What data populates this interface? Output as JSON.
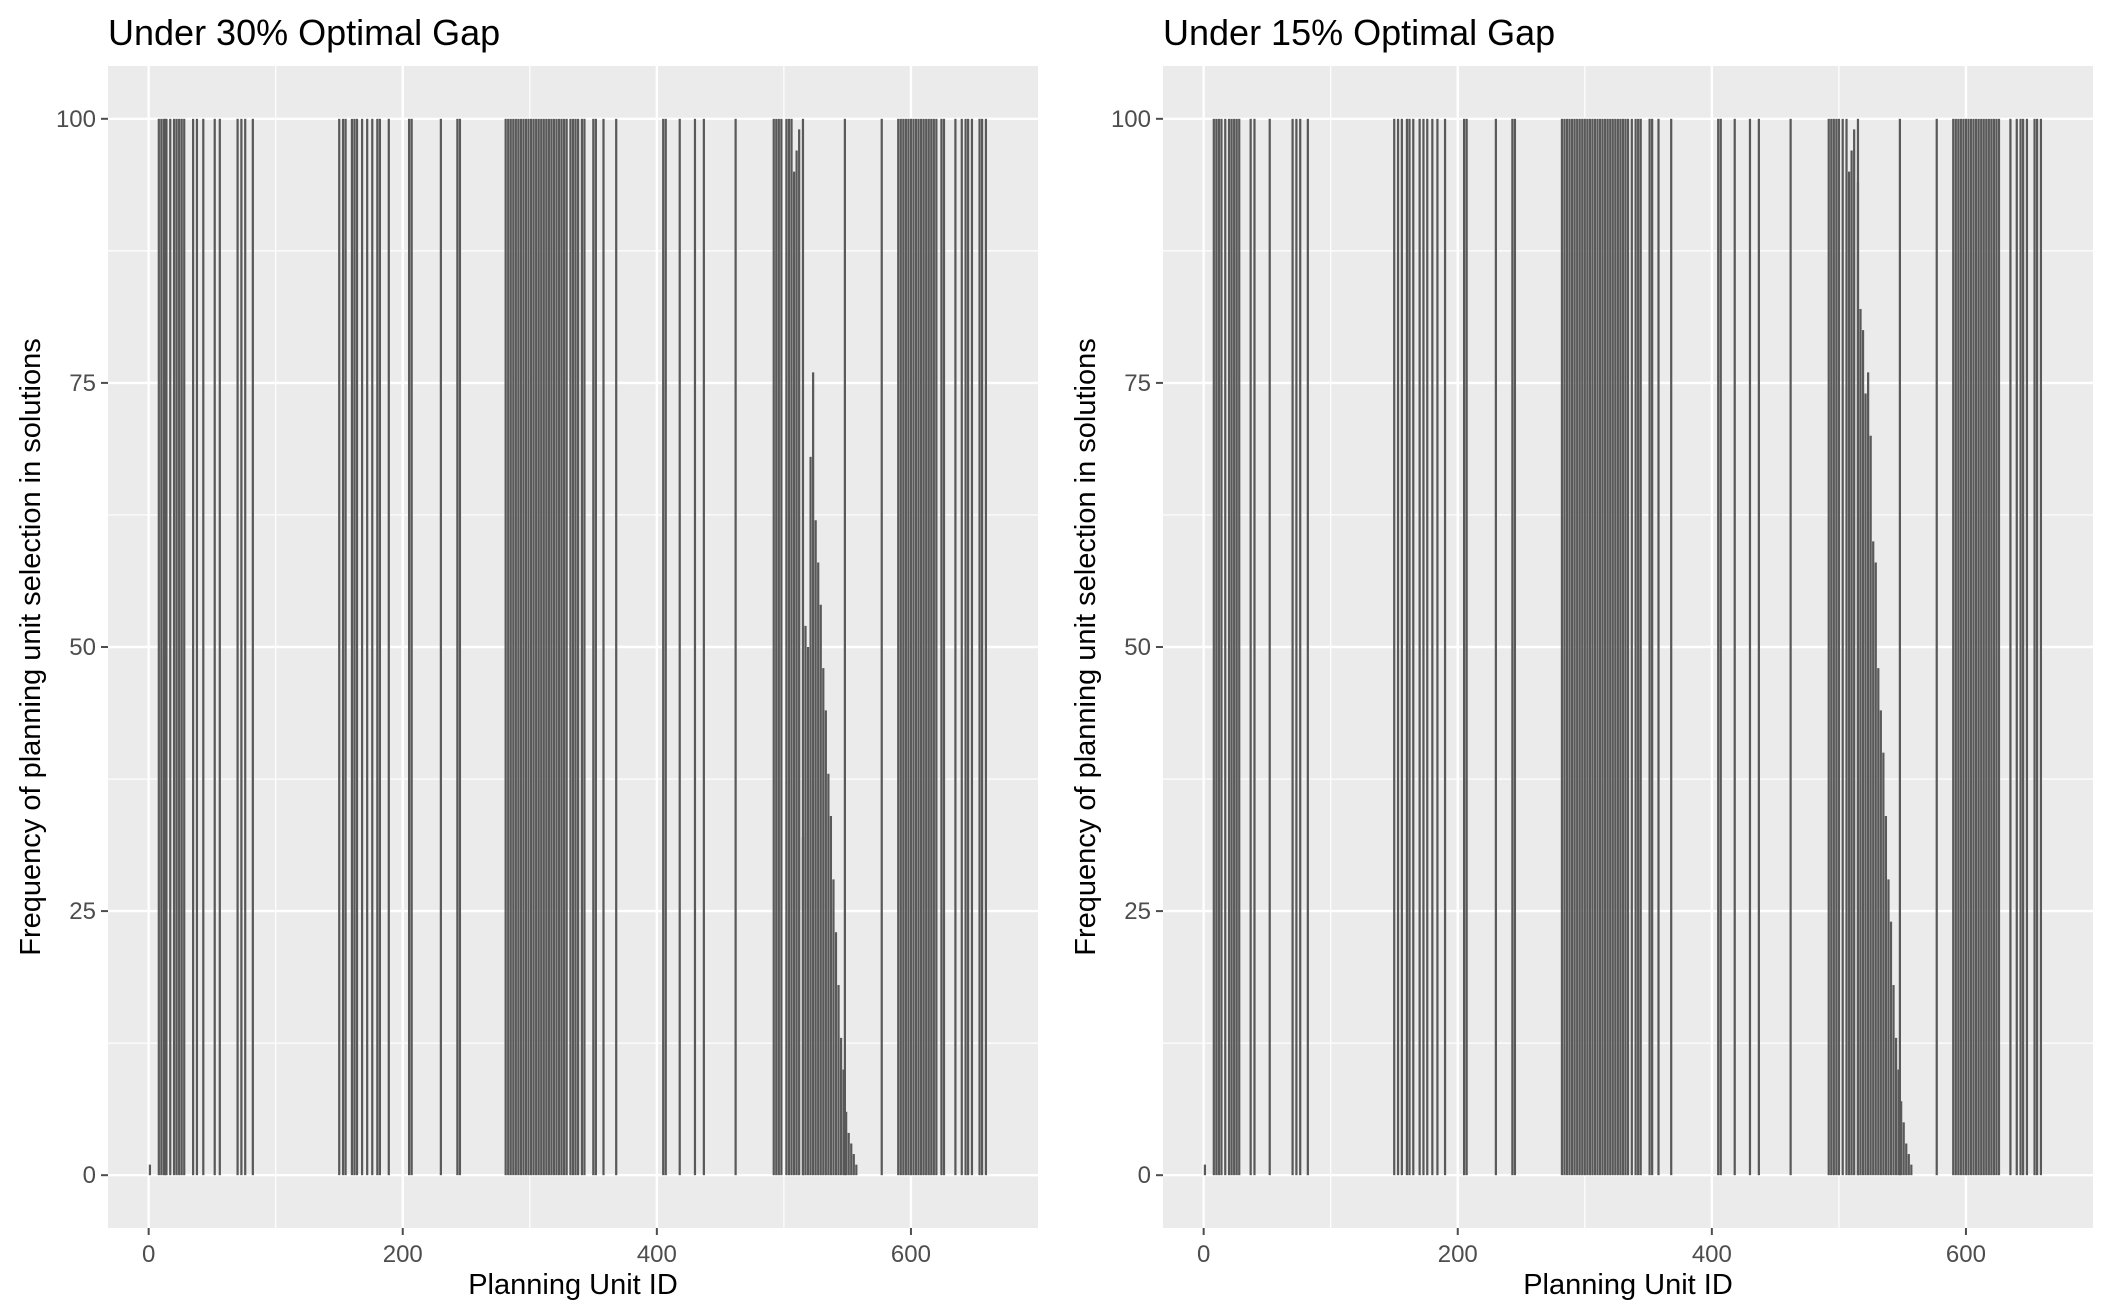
{
  "figure": {
    "colors": {
      "panel_bg": "#ebebeb",
      "grid": "#ffffff",
      "bar": "#595959",
      "tick": "#4d4d4d"
    }
  },
  "chart_data": [
    {
      "type": "bar",
      "title": "Under 30% Optimal Gap",
      "xlabel": "Planning Unit ID",
      "ylabel": "Frequency of planning unit selection in solutions",
      "xlim": [
        -32,
        700
      ],
      "ylim": [
        -5,
        105
      ],
      "x_ticks": [
        0,
        200,
        400,
        600
      ],
      "y_ticks": [
        0,
        25,
        50,
        75,
        100
      ],
      "grid": true,
      "full_bars": [
        8,
        10,
        12,
        13,
        14,
        17,
        20,
        22,
        24,
        26,
        28,
        35,
        38,
        43,
        52,
        56,
        70,
        73,
        76,
        82,
        150,
        153,
        155,
        160,
        162,
        164,
        168,
        172,
        176,
        180,
        182,
        189,
        205,
        207,
        230,
        243,
        245,
        281,
        283,
        285,
        287,
        289,
        291,
        293,
        295,
        297,
        299,
        301,
        303,
        305,
        307,
        309,
        311,
        313,
        315,
        317,
        319,
        321,
        323,
        325,
        327,
        329,
        332,
        334,
        336,
        338,
        341,
        343,
        350,
        352,
        358,
        368,
        405,
        407,
        418,
        430,
        437,
        462,
        492,
        494,
        496,
        498,
        502,
        504,
        506,
        515,
        548,
        577,
        590,
        592,
        594,
        596,
        598,
        600,
        602,
        604,
        606,
        608,
        610,
        612,
        614,
        616,
        618,
        620,
        624,
        626,
        635,
        640,
        643,
        645,
        648,
        654,
        656,
        659
      ],
      "partial_bars": [
        {
          "x": 1,
          "value": 1
        },
        {
          "x": 508,
          "value": 95
        },
        {
          "x": 510,
          "value": 97
        },
        {
          "x": 512,
          "value": 99
        },
        {
          "x": 515,
          "value": 32
        },
        {
          "x": 517,
          "value": 52
        },
        {
          "x": 519,
          "value": 50
        },
        {
          "x": 521,
          "value": 68
        },
        {
          "x": 523,
          "value": 76
        },
        {
          "x": 525,
          "value": 62
        },
        {
          "x": 527,
          "value": 58
        },
        {
          "x": 529,
          "value": 54
        },
        {
          "x": 531,
          "value": 48
        },
        {
          "x": 533,
          "value": 44
        },
        {
          "x": 535,
          "value": 38
        },
        {
          "x": 537,
          "value": 34
        },
        {
          "x": 539,
          "value": 28
        },
        {
          "x": 541,
          "value": 23
        },
        {
          "x": 543,
          "value": 18
        },
        {
          "x": 545,
          "value": 13
        },
        {
          "x": 547,
          "value": 10
        },
        {
          "x": 549,
          "value": 6
        },
        {
          "x": 551,
          "value": 4
        },
        {
          "x": 553,
          "value": 3
        },
        {
          "x": 555,
          "value": 2
        },
        {
          "x": 557,
          "value": 1
        }
      ]
    },
    {
      "type": "bar",
      "title": "Under 15% Optimal Gap",
      "xlabel": "Planning Unit ID",
      "ylabel": "Frequency of planning unit selection in solutions",
      "xlim": [
        -32,
        700
      ],
      "ylim": [
        -5,
        105
      ],
      "x_ticks": [
        0,
        200,
        400,
        600
      ],
      "y_ticks": [
        0,
        25,
        50,
        75,
        100
      ],
      "grid": true,
      "full_bars": [
        8,
        10,
        12,
        14,
        17,
        20,
        22,
        24,
        26,
        28,
        37,
        40,
        52,
        70,
        73,
        76,
        82,
        150,
        153,
        156,
        160,
        162,
        165,
        170,
        173,
        176,
        180,
        184,
        190,
        205,
        207,
        230,
        243,
        245,
        282,
        284,
        286,
        288,
        290,
        292,
        294,
        296,
        298,
        300,
        302,
        304,
        306,
        308,
        310,
        312,
        314,
        316,
        318,
        320,
        322,
        324,
        326,
        328,
        330,
        332,
        334,
        337,
        340,
        342,
        344,
        351,
        353,
        358,
        368,
        405,
        407,
        418,
        430,
        437,
        462,
        492,
        494,
        496,
        498,
        500,
        503,
        506,
        515,
        548,
        577,
        590,
        592,
        594,
        596,
        598,
        600,
        602,
        604,
        606,
        608,
        610,
        612,
        614,
        616,
        618,
        620,
        622,
        624,
        626,
        635,
        640,
        643,
        645,
        648,
        654,
        656,
        659
      ],
      "partial_bars": [
        {
          "x": 1,
          "value": 1
        },
        {
          "x": 508,
          "value": 95
        },
        {
          "x": 510,
          "value": 97
        },
        {
          "x": 512,
          "value": 99
        },
        {
          "x": 515,
          "value": 94
        },
        {
          "x": 517,
          "value": 82
        },
        {
          "x": 519,
          "value": 80
        },
        {
          "x": 521,
          "value": 74
        },
        {
          "x": 523,
          "value": 76
        },
        {
          "x": 525,
          "value": 70
        },
        {
          "x": 527,
          "value": 60
        },
        {
          "x": 529,
          "value": 58
        },
        {
          "x": 531,
          "value": 48
        },
        {
          "x": 533,
          "value": 44
        },
        {
          "x": 535,
          "value": 40
        },
        {
          "x": 537,
          "value": 34
        },
        {
          "x": 539,
          "value": 28
        },
        {
          "x": 541,
          "value": 24
        },
        {
          "x": 543,
          "value": 18
        },
        {
          "x": 545,
          "value": 13
        },
        {
          "x": 547,
          "value": 10
        },
        {
          "x": 549,
          "value": 7
        },
        {
          "x": 551,
          "value": 5
        },
        {
          "x": 553,
          "value": 3
        },
        {
          "x": 555,
          "value": 2
        },
        {
          "x": 557,
          "value": 1
        }
      ]
    }
  ]
}
